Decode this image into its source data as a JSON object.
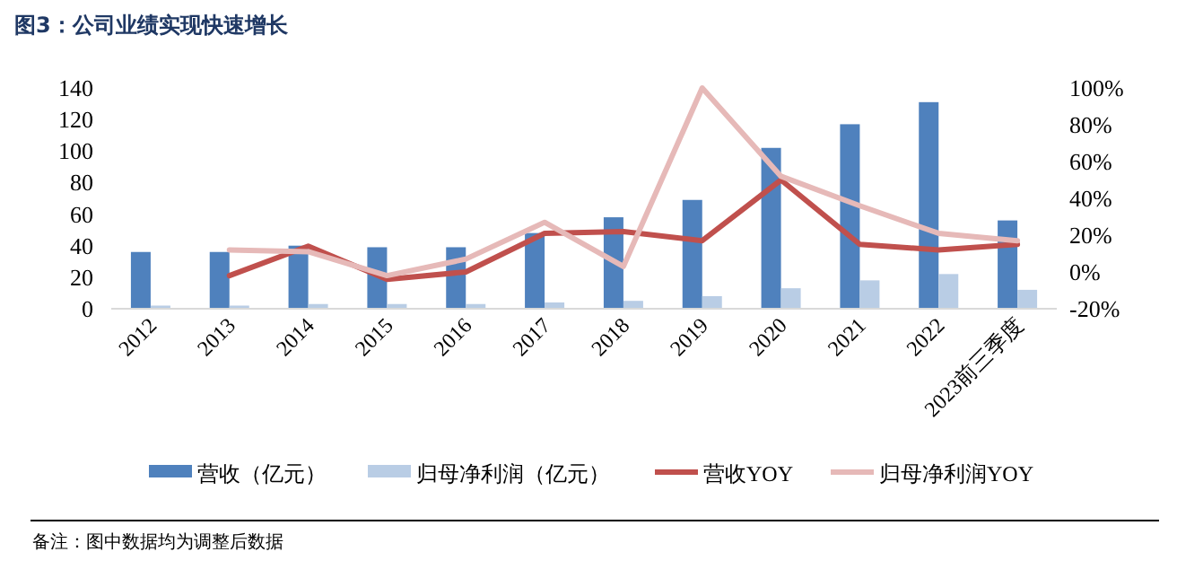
{
  "chart_data": {
    "type": "bar",
    "title": "图3：公司业绩实现快速增长",
    "categories": [
      "2012",
      "2013",
      "2014",
      "2015",
      "2016",
      "2017",
      "2018",
      "2019",
      "2020",
      "2021",
      "2022",
      "2023前三季度"
    ],
    "series": [
      {
        "name": "营收（亿元）",
        "color": "#4f81bd",
        "values": [
          36,
          36,
          40,
          39,
          39,
          48,
          58,
          69,
          102,
          117,
          131,
          56
        ]
      },
      {
        "name": "归母净利润（亿元）",
        "color": "#b9cde5",
        "values": [
          2,
          2,
          3,
          3,
          3,
          4,
          5,
          8,
          13,
          18,
          22,
          12
        ]
      },
      {
        "name": "营收YOY",
        "type": "line",
        "axis": "y2",
        "color": "#c0504d",
        "values": [
          null,
          -2,
          14,
          -4,
          0,
          21,
          22,
          17,
          50,
          15,
          12,
          15
        ]
      },
      {
        "name": "归母净利润YOY",
        "type": "line",
        "axis": "y2",
        "color": "#e6b9b8",
        "values": [
          null,
          12,
          11,
          -2,
          7,
          27,
          3,
          100,
          52,
          36,
          21,
          17
        ]
      }
    ],
    "ylim": [
      0,
      140
    ],
    "yticks": [
      0,
      20,
      40,
      60,
      80,
      100,
      120,
      140
    ],
    "y2lim": [
      -20,
      100
    ],
    "y2ticks": [
      {
        "value": -20,
        "label": "-20%"
      },
      {
        "value": 0,
        "label": "0%"
      },
      {
        "value": 20,
        "label": "20%"
      },
      {
        "value": 40,
        "label": "40%"
      },
      {
        "value": 60,
        "label": "60%"
      },
      {
        "value": 80,
        "label": "80%"
      },
      {
        "value": 100,
        "label": "100%"
      }
    ],
    "legend": "bottom",
    "annotations": [
      "备注：图中数据均为调整后数据"
    ]
  }
}
